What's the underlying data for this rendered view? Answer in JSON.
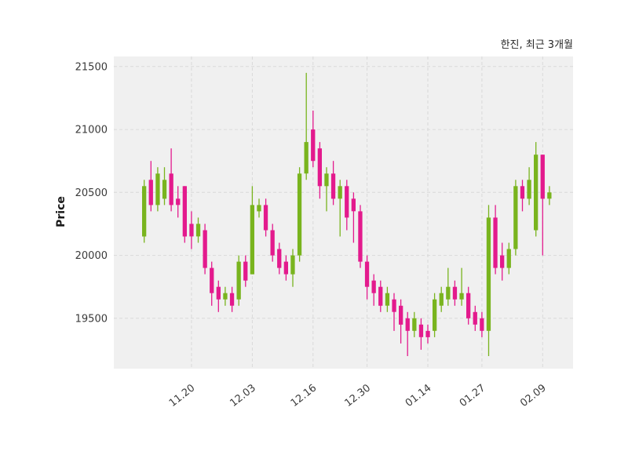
{
  "header": {
    "title": "한진, 최근 3개월"
  },
  "chart_data": {
    "type": "candlestick",
    "title": "한진, 최근 3개월",
    "ylabel": "Price",
    "xlabel": "",
    "grid": true,
    "ylim": [
      19100,
      21580
    ],
    "yticks": [
      19500,
      20000,
      20500,
      21000,
      21500
    ],
    "xticks": [
      {
        "label": "11.20",
        "index": 7
      },
      {
        "label": "12.03",
        "index": 16
      },
      {
        "label": "12.16",
        "index": 25
      },
      {
        "label": "12.30",
        "index": 33
      },
      {
        "label": "01.14",
        "index": 42
      },
      {
        "label": "01.27",
        "index": 50
      },
      {
        "label": "02.09",
        "index": 59
      }
    ],
    "columns": [
      "open",
      "high",
      "low",
      "close"
    ],
    "candles": [
      [
        20150,
        20600,
        20100,
        20550
      ],
      [
        20600,
        20750,
        20350,
        20400
      ],
      [
        20400,
        20700,
        20350,
        20650
      ],
      [
        20450,
        20700,
        20400,
        20600
      ],
      [
        20650,
        20850,
        20350,
        20400
      ],
      [
        20450,
        20550,
        20300,
        20400
      ],
      [
        20550,
        20550,
        20100,
        20150
      ],
      [
        20250,
        20350,
        20050,
        20150
      ],
      [
        20150,
        20300,
        20100,
        20250
      ],
      [
        20200,
        20250,
        19850,
        19900
      ],
      [
        19900,
        19950,
        19600,
        19700
      ],
      [
        19750,
        19800,
        19550,
        19650
      ],
      [
        19650,
        19750,
        19600,
        19700
      ],
      [
        19700,
        19750,
        19550,
        19600
      ],
      [
        19650,
        20000,
        19600,
        19950
      ],
      [
        19950,
        20000,
        19750,
        19800
      ],
      [
        19850,
        20550,
        19850,
        20400
      ],
      [
        20350,
        20450,
        20300,
        20400
      ],
      [
        20400,
        20450,
        20150,
        20200
      ],
      [
        20200,
        20250,
        19950,
        20000
      ],
      [
        20050,
        20100,
        19850,
        19900
      ],
      [
        19950,
        20000,
        19800,
        19850
      ],
      [
        19850,
        20050,
        19750,
        20000
      ],
      [
        20000,
        20700,
        19950,
        20650
      ],
      [
        20650,
        21450,
        20600,
        20900
      ],
      [
        21000,
        21150,
        20700,
        20750
      ],
      [
        20850,
        20900,
        20450,
        20550
      ],
      [
        20550,
        20700,
        20350,
        20650
      ],
      [
        20650,
        20750,
        20400,
        20450
      ],
      [
        20450,
        20600,
        20150,
        20550
      ],
      [
        20550,
        20600,
        20200,
        20300
      ],
      [
        20450,
        20500,
        20100,
        20350
      ],
      [
        20350,
        20400,
        19900,
        19950
      ],
      [
        19950,
        20000,
        19650,
        19750
      ],
      [
        19800,
        19850,
        19600,
        19700
      ],
      [
        19750,
        19800,
        19550,
        19600
      ],
      [
        19600,
        19750,
        19550,
        19700
      ],
      [
        19650,
        19700,
        19400,
        19550
      ],
      [
        19600,
        19650,
        19300,
        19450
      ],
      [
        19500,
        19550,
        19200,
        19400
      ],
      [
        19400,
        19550,
        19350,
        19500
      ],
      [
        19450,
        19500,
        19250,
        19350
      ],
      [
        19400,
        19450,
        19300,
        19350
      ],
      [
        19400,
        19700,
        19350,
        19650
      ],
      [
        19600,
        19750,
        19550,
        19700
      ],
      [
        19650,
        19900,
        19600,
        19750
      ],
      [
        19750,
        19800,
        19600,
        19650
      ],
      [
        19650,
        19900,
        19600,
        19700
      ],
      [
        19700,
        19750,
        19450,
        19500
      ],
      [
        19550,
        19600,
        19400,
        19450
      ],
      [
        19500,
        19550,
        19350,
        19400
      ],
      [
        19400,
        20400,
        19200,
        20300
      ],
      [
        20300,
        20400,
        19850,
        19900
      ],
      [
        20000,
        20100,
        19800,
        19900
      ],
      [
        19900,
        20100,
        19850,
        20050
      ],
      [
        20050,
        20600,
        20000,
        20550
      ],
      [
        20550,
        20600,
        20350,
        20450
      ],
      [
        20450,
        20700,
        20400,
        20600
      ],
      [
        20200,
        20900,
        20150,
        20800
      ],
      [
        20800,
        20800,
        20000,
        20450
      ],
      [
        20450,
        20550,
        20400,
        20500
      ]
    ],
    "colors": {
      "up": "#79b41e",
      "down": "#e31a8d",
      "plot_bg": "#f0f0f0",
      "grid": "#d9d9d9",
      "tick_text": "#3a3a3a",
      "title_text": "#262626"
    }
  }
}
